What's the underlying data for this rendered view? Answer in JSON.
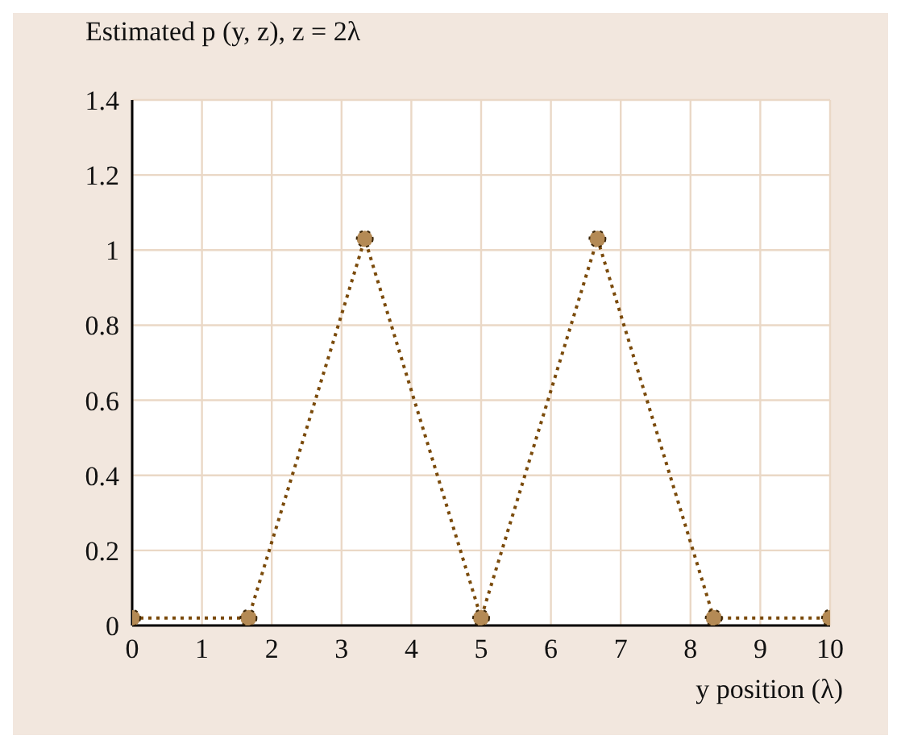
{
  "chart_data": {
    "type": "line",
    "title": "Estimated p (y, z), z = 2λ",
    "xlabel": "y position (λ)",
    "x": [
      0,
      1.667,
      3.333,
      5,
      6.667,
      8.333,
      10
    ],
    "series": [
      {
        "color": "#7a4a0a",
        "values": [
          0.02,
          0.02,
          1.03,
          0.02,
          1.03,
          0.02,
          0.02
        ]
      }
    ],
    "xlim": [
      0,
      10
    ],
    "xticks": [
      0,
      1,
      2,
      3,
      4,
      5,
      6,
      7,
      8,
      9,
      10
    ],
    "ylim": [
      0,
      1.4
    ],
    "yticks": [
      0,
      0.2,
      0.4,
      0.6,
      0.8,
      1,
      1.2,
      1.4
    ],
    "grid": true,
    "marker": "circle",
    "line_style": "dotted",
    "legend": false
  }
}
